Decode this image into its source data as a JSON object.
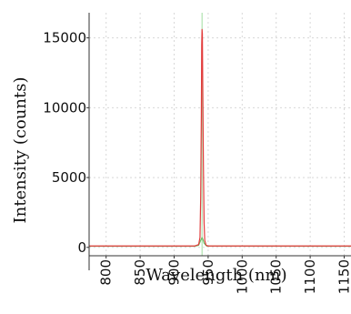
{
  "chart_data": {
    "type": "line",
    "xlabel": "Wavelength (nm)",
    "ylabel": "Intensity (counts)",
    "xlim": [
      775,
      1160
    ],
    "ylim": [
      -600,
      16800
    ],
    "x_ticks": [
      800,
      850,
      900,
      950,
      1000,
      1050,
      1100,
      1150
    ],
    "x_tick_labels": [
      "800",
      "850",
      "900",
      "950",
      "1000",
      "1050",
      "1100",
      "1150"
    ],
    "y_ticks": [
      0,
      5000,
      10000,
      15000
    ],
    "y_tick_labels": [
      "0",
      "5000",
      "10000",
      "15000"
    ],
    "grid": true,
    "legend": "none",
    "series": [
      {
        "color": "#e23b3b",
        "x": [
          775,
          900,
          930,
          936,
          938,
          939,
          940,
          940.5,
          941,
          941.5,
          942,
          943,
          944,
          945,
          947,
          950,
          1000,
          1100,
          1160
        ],
        "y": [
          100,
          100,
          100,
          200,
          700,
          3500,
          9500,
          14500,
          15600,
          15300,
          12000,
          6000,
          1800,
          500,
          150,
          100,
          100,
          100,
          100
        ]
      },
      {
        "color": "#69c169",
        "x": [
          775,
          930,
          936,
          939,
          941,
          942,
          944,
          948,
          1160
        ],
        "y": [
          80,
          80,
          150,
          500,
          700,
          600,
          300,
          90,
          80
        ]
      }
    ],
    "reference_line_x": 941,
    "reference_line_color": "#9fdc9f"
  }
}
